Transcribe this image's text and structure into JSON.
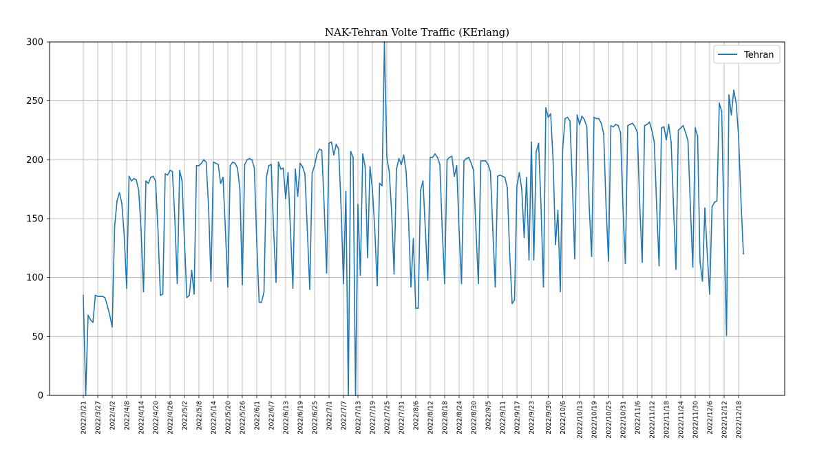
{
  "chart_data": {
    "type": "line",
    "title": "NAK-Tehran Volte Traffic (KErlang)",
    "xlabel": "",
    "ylabel": "",
    "ylim": [
      0,
      300
    ],
    "yticks": [
      0,
      50,
      100,
      150,
      200,
      250,
      300
    ],
    "grid": true,
    "legend_position": "top-right",
    "x_start_date": "2022/3/21",
    "xticks": [
      "2022/3/21",
      "2022/3/27",
      "2022/4/2",
      "2022/4/8",
      "2022/4/14",
      "2022/4/20",
      "2022/4/26",
      "2022/5/2",
      "2022/5/8",
      "2022/5/14",
      "2022/5/20",
      "2022/5/26",
      "2022/6/1",
      "2022/6/7",
      "2022/6/13",
      "2022/6/19",
      "2022/6/25",
      "2022/7/1",
      "2022/7/7",
      "2022/7/13",
      "2022/7/19",
      "2022/7/25",
      "2022/7/31",
      "2022/8/6",
      "2022/8/12",
      "2022/8/18",
      "2022/8/24",
      "2022/8/30",
      "2022/9/5",
      "2022/9/11",
      "2022/9/17",
      "2022/9/23",
      "2022/9/30",
      "2022/10/6",
      "2022/10/13",
      "2022/10/19",
      "2022/10/25",
      "2022/10/31",
      "2022/11/6",
      "2022/11/12",
      "2022/11/18",
      "2022/11/24",
      "2022/11/30",
      "2022/12/6",
      "2022/12/12",
      "2022/12/18"
    ],
    "series": [
      {
        "name": "Tehran",
        "color": "#1f77b4",
        "values": [
          85,
          0,
          68,
          64,
          62,
          85,
          84,
          84,
          84,
          83,
          76,
          68,
          58,
          143,
          165,
          172,
          163,
          135,
          91,
          186,
          182,
          184,
          183,
          174,
          140,
          88,
          182,
          180,
          185,
          186,
          182,
          140,
          85,
          86,
          188,
          187,
          191,
          190,
          150,
          95,
          191,
          182,
          130,
          83,
          85,
          106,
          86,
          195,
          195,
          197,
          200,
          198,
          160,
          97,
          198,
          197,
          196,
          180,
          185,
          140,
          92,
          195,
          198,
          197,
          193,
          175,
          94,
          196,
          200,
          201,
          200,
          193,
          130,
          79,
          79,
          88,
          185,
          195,
          196,
          140,
          96,
          198,
          192,
          193,
          167,
          189,
          140,
          91,
          192,
          169,
          197,
          194,
          188,
          140,
          90,
          189,
          195,
          205,
          209,
          208,
          160,
          104,
          214,
          215,
          204,
          213,
          209,
          160,
          95,
          173,
          0,
          207,
          202,
          0,
          162,
          102,
          205,
          194,
          117,
          194,
          175,
          140,
          93,
          180,
          178,
          300,
          202,
          190,
          155,
          103,
          192,
          201,
          196,
          204,
          190,
          150,
          92,
          133,
          74,
          74,
          174,
          182,
          140,
          98,
          202,
          202,
          205,
          202,
          196,
          140,
          95,
          200,
          202,
          203,
          186,
          195,
          140,
          95,
          199,
          201,
          202,
          197,
          191,
          140,
          95,
          199,
          199,
          199,
          196,
          190,
          140,
          92,
          186,
          187,
          186,
          185,
          176,
          120,
          78,
          81,
          178,
          189,
          175,
          134,
          185,
          115,
          215,
          115,
          207,
          214,
          160,
          92,
          244,
          236,
          239,
          200,
          128,
          157,
          88,
          210,
          235,
          236,
          233,
          180,
          116,
          238,
          230,
          237,
          234,
          228,
          160,
          118,
          236,
          235,
          235,
          231,
          222,
          160,
          114,
          229,
          228,
          230,
          229,
          223,
          160,
          112,
          229,
          230,
          231,
          228,
          223,
          160,
          113,
          229,
          230,
          232,
          225,
          215,
          160,
          110,
          227,
          228,
          217,
          230,
          215,
          160,
          107,
          225,
          227,
          229,
          223,
          216,
          160,
          109,
          227,
          220,
          113,
          97,
          159,
          120,
          86,
          160,
          164,
          165,
          248,
          241,
          140,
          51,
          255,
          238,
          259,
          248,
          220,
          165,
          120
        ]
      }
    ]
  }
}
